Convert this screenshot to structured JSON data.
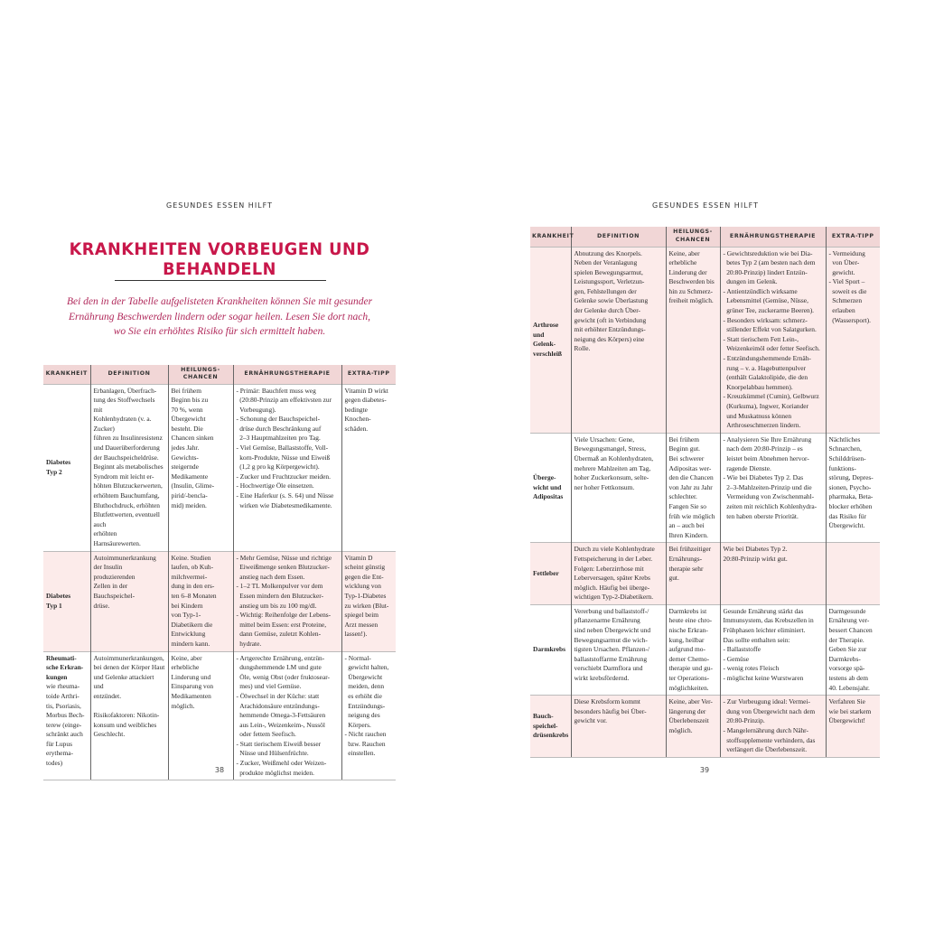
{
  "left_page": {
    "running_head": "GESUNDES ESSEN HILFT",
    "title": "KRANKHEITEN VORBEUGEN UND BEHANDELN",
    "intro": "Bei den in der Tabelle aufgelisteten Krankheiten können Sie mit gesunder\nErnährung Beschwerden lindern oder sogar heilen. Lesen Sie dort nach,\nwo Sie ein erhöhtes Risiko für sich ermittelt haben.",
    "page_number": "38",
    "headers": [
      "KRANKHEIT",
      "DEFINITION",
      "HEILUNGS-\nCHANCEN",
      "ERNÄHRUNGSTHERAPIE",
      "EXTRA-TIPP"
    ],
    "rows": [
      {
        "name": "Diabetes\nTyp 2",
        "extra_name": "",
        "definition": "Erbanlagen, Überfrach-\ntung des Stoffwechsels mit\nKohlenhydraten (v. a. Zucker)\nführen zu Insulinresistenz\nund Dauerüberforderung\nder Bauchspeicheldrüse.\nBeginnt als metabolisches\nSyndrom mit leicht er-\nhöhten Blutzuckerwerten,\nerhöhtem Bauchumfang,\nBluthochdruck, erhöhten\nBlutfettwerten, eventuell auch\nerhöhten Harnsäurewerten.",
        "chances": "Bei frühem\nBeginn bis zu\n70 %, wenn\nÜbergewicht\nbesteht. Die\nChancen sinken\njedes Jahr.\nGewichts-\nsteigernde\nMedikamente\n(Insulin, Glime-\npirid/-bencla-\nmid) meiden.",
        "therapy": "- Primär: Bauchfett muss weg\n  (20:80-Prinzip am effektivsten zur\n  Vorbeugung).\n- Schonung der Bauchspeichel-\n  drüse durch Beschränkung auf\n  2–3 Hauptmahlzeiten pro Tag.\n- Viel Gemüse, Ballaststoffe, Voll-\n  korn-Produkte, Nüsse und Eiweiß\n  (1,2 g pro kg Körpergewicht).\n- Zucker und Fruchtzucker meiden.\n- Hochwertige Öle einsetzen.\n- Eine Haferkur (s. S. 64) und Nüsse\n  wirken wie Diabetesmedikamente.",
        "tip": "Vitamin D wirkt\ngegen diabetes-\nbedingte\nKnochen-\nschäden."
      },
      {
        "name": "Diabetes\nTyp 1",
        "extra_name": "",
        "definition": "Autoimmunerkrankung\nder Insulin produzierenden\nZellen in der Bauchspeichel-\ndrüse.",
        "chances": "Keine. Studien\nlaufen, ob Kuh-\nmilchvermei-\ndung in den ers-\nten 6–8 Monaten\nbei Kindern\nvon Typ-1-\nDiabetikern die\nEntwicklung\nmindern kann.",
        "therapy": "- Mehr Gemüse, Nüsse und richtige\n  Eiweißmenge senken Blutzucker-\n  anstieg nach dem Essen.\n- 1–2 TL Molkenpulver vor dem\n  Essen mindern den Blutzucker-\n  anstieg um bis zu 100 mg/dl.\n- Wichtig: Reihenfolge der Lebens-\n  mittel beim Essen: erst Proteine,\n  dann Gemüse, zuletzt Kohlen-\n  hydrate.",
        "tip": "Vitamin D\nscheint günstig\ngegen die Ent-\nwicklung von\nTyp-1-Diabetes\nzu wirken (Blut-\nspiegel beim\nArzt messen\nlassen!)."
      },
      {
        "name": "Rheumati-\nsche Erkran-\nkungen",
        "extra_name": "wie rheuma-\ntoide Arthri-\ntis, Psoriasis,\nMorbus Bech-\nterew (einge-\nschränkt auch\nfür Lupus\nerythema-\ntodes)",
        "definition": "Autoimmunerkrankungen,\nbei denen der Körper Haut\nund Gelenke attackiert und\nentzündet.\n\nRisikofaktoren: Nikotin-\nkonsum und weibliches\nGeschlecht.",
        "chances": "Keine, aber\nerhebliche\nLinderung und\nEinsparung von\nMedikamenten\nmöglich.",
        "therapy": "- Artgerechte Ernährung, entzün-\n  dungshemmende LM und gute\n  Öle, wenig Obst (oder fruktosear-\n  mes) und viel Gemüse.\n- Ölwechsel in der Küche: statt\n  Arachidonsäure entzündungs-\n  hemmende Omega-3-Fettsäuren\n  aus Lein-, Weizenkeim-, Nussöl\n  oder fettem Seefisch.\n- Statt tierischem Eiweiß besser\n  Nüsse und Hülsenfrüchte.\n- Zucker, Weißmehl oder Weizen-\n  produkte möglichst meiden.",
        "tip": "- Normal-\n  gewicht halten,\n  Übergewicht\n  meiden, denn\n  es erhöht die\n  Entzündungs-\n  neigung des\n  Körpers.\n- Nicht rauchen\n  bzw. Rauchen\n  einstellen."
      }
    ]
  },
  "right_page": {
    "running_head": "GESUNDES ESSEN HILFT",
    "page_number": "39",
    "headers": [
      "KRANKHEIT",
      "DEFINITION",
      "HEILUNGS-\nCHANCEN",
      "ERNÄHRUNGSTHERAPIE",
      "EXTRA-TIPP"
    ],
    "rows": [
      {
        "name": "Arthrose\nund Gelenk-\nverschleiß",
        "definition": "Abnutzung des Knorpels.\nNeben der Veranlagung\nspielen Bewegungsarmut,\nLeistungssport, Verletzun-\ngen, Fehlstellungen der\nGelenke sowie Überlastung\nder Gelenke durch Über-\ngewicht (oft in Verbindung\nmit erhöhter Entzündungs-\nneigung des Körpers) eine\nRolle.",
        "chances": "Keine, aber\nerhebliche\nLinderung der\nBeschwerden bis\nhin zu Schmerz-\nfreiheit möglich.",
        "therapy": "- Gewichtsreduktion wie bei Dia-\n  betes Typ 2 (am besten nach dem\n  20:80-Prinzip) lindert Entzün-\n  dungen im Gelenk.\n- Antientzündlich wirksame\n  Lebensmittel (Gemüse, Nüsse,\n  grüner Tee, zuckerarme Beeren).\n- Besonders wirksam: schmerz-\n  stillender Effekt von Salatgurken.\n- Statt tierischem Fett Lein-,\n  Weizenkeimöl oder fetter Seefisch.\n- Entzündungshemmende Ernäh-\n  rung – v. a. Hagebuttenpulver\n  (enthält Galaktolipide, die den\n  Knorpelabbau hemmen).\n- Kreuzkümmel (Cumin), Gelbwurz\n  (Kurkuma), Ingwer, Koriander\n  und Muskatnuss können\n  Arthroseschmerzen lindern.",
        "tip": "- Vermeidung\n  von Über-\n  gewicht.\n- Viel Sport –\n  soweit es die\n  Schmerzen\n  erlauben\n  (Wassersport)."
      },
      {
        "name": "Überge-\nwicht und\nAdipositas",
        "definition": "Viele Ursachen: Gene,\nBewegungsmangel, Stress,\nÜbermaß an Kohlenhydraten,\nmehrere Mahlzeiten am Tag,\nhoher Zuckerkonsum, selte-\nner hoher Fettkonsum.",
        "chances": "Bei frühem\nBeginn gut.\nBei schwerer\nAdipositas wer-\nden die Chancen\nvon Jahr zu Jahr\nschlechter.\nFangen Sie so\nfrüh wie möglich\nan – auch bei\nIhren Kindern.",
        "therapy": "- Analysieren Sie Ihre Ernährung\n  nach dem 20:80-Prinzip – es\n  leistet beim Abnehmen hervor-\n  ragende Dienste.\n- Wie bei Diabetes Typ 2. Das\n  2–3-Mahlzeiten-Prinzip und die\n  Vermeidung von Zwischenmahl-\n  zeiten mit reichlich Kohlenhydra-\n  ten haben oberste Priorität.",
        "tip": "Nächtliches\nSchnarchen,\nSchilddrüsen-\nfunktions-\nstörung, Depres-\nsionen, Psycho-\npharmaka, Beta-\nblocker erhöhen\ndas Risiko für\nÜbergewicht."
      },
      {
        "name": "Fettleber",
        "definition": "Durch zu viele Kohlenhydrate\nFettspeicherung in der Leber.\nFolgen: Leberzirrhose mit\nLeberversagen, später Krebs\nmöglich. Häufig bei überge-\nwichtigen Typ-2-Diabetikern.",
        "chances": "Bei frühzeitiger\nErnährungs-\ntherapie sehr\ngut.",
        "therapy": "Wie bei Diabetes Typ 2.\n20:80-Prinzip wirkt gut.",
        "tip": ""
      },
      {
        "name": "Darmkrebs",
        "definition": "Vererbung und ballaststoff-/\npflanzenarme Ernährung\nsind neben Übergewicht und\nBewegungsarmut die wich-\ntigsten Ursachen. Pflanzen-/\nballaststoffarme Ernährung\nverschiebt Darmflora und\nwirkt krebsfördernd.",
        "chances": "Darmkrebs ist\nheute eine chro-\nnische Erkran-\nkung, heilbar\naufgrund mo-\nderner Chemo-\ntherapie und gu-\nter Operations-\nmöglichkeiten.",
        "therapy": "Gesunde Ernährung stärkt das\nImmunsystem, das Krebszellen in\nFrühphasen leichter eliminiert.\nDas sollte enthalten sein:\n- Ballaststoffe\n- Gemüse\n- wenig rotes Fleisch\n- möglichst keine Wurstwaren",
        "tip": "Darmgesunde\nErnährung ver-\nbessert Chancen\nder Therapie.\nGeben Sie zur\nDarmkrebs-\nvorsorge spä-\ntestens ab dem\n40. Lebensjahr."
      },
      {
        "name": "Bauch-\nspeichel-\ndrüsenkrebs",
        "definition": "Diese Krebsform kommt\nbesonders häufig bei Über-\ngewicht vor.",
        "chances": "Keine, aber Ver-\nlängerung der\nÜberlebenszeit\nmöglich.",
        "therapy": "- Zur Vorbeugung ideal: Vermei-\n  dung von Übergewicht nach dem\n  20:80-Prinzip.\n- Mangelernährung durch Nähr-\n  stoffsupplemente verhindern, das\n  verlängert die Überlebenszeit.",
        "tip": "Verfahren Sie\nwie bei starkem\nÜbergewicht!"
      }
    ]
  },
  "colors": {
    "accent": "#c8174a",
    "intro": "#b0285a",
    "header_bg": "#f1d6d6",
    "row_tint": "#fcebea"
  }
}
